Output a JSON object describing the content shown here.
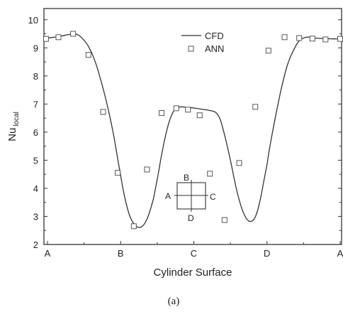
{
  "chart_data": {
    "type": "line",
    "xlabel": "Cylinder Surface",
    "ylabel": "Nu",
    "ylabel_subscript": "local",
    "caption": "(a)",
    "x_ticks": [
      "A",
      "B",
      "C",
      "D",
      "A"
    ],
    "x_positions": [
      0,
      1,
      2,
      3,
      4
    ],
    "xlim": [
      0,
      4
    ],
    "y_ticks": [
      "2",
      "3",
      "4",
      "5",
      "6",
      "7",
      "8",
      "9",
      "10"
    ],
    "ylim": [
      2,
      10.4
    ],
    "legend": {
      "position": "top-center"
    },
    "series": [
      {
        "name": "CFD",
        "style": "line",
        "color": "#333333",
        "x": [
          -0.05,
          0,
          0.15,
          0.3,
          0.38,
          0.46,
          0.56,
          0.66,
          0.76,
          0.84,
          0.9,
          0.95,
          1.0,
          1.05,
          1.12,
          1.2,
          1.28,
          1.36,
          1.44,
          1.48,
          1.52,
          1.56,
          1.62,
          1.68,
          1.74,
          1.82,
          1.9,
          2.0,
          2.1,
          2.2,
          2.3,
          2.36,
          2.42,
          2.5,
          2.58,
          2.66,
          2.72,
          2.78,
          2.84,
          2.9,
          2.96,
          3.0,
          3.04,
          3.12,
          3.2,
          3.28,
          3.36,
          3.44,
          3.54,
          3.62,
          3.7,
          3.8,
          3.9,
          4.0
        ],
        "y": [
          9.33,
          9.35,
          9.4,
          9.48,
          9.5,
          9.38,
          9.05,
          8.45,
          7.55,
          6.7,
          5.95,
          5.2,
          4.45,
          3.75,
          3.05,
          2.68,
          2.62,
          2.9,
          3.55,
          4.05,
          4.6,
          5.2,
          5.95,
          6.5,
          6.8,
          6.9,
          6.88,
          6.86,
          6.82,
          6.78,
          6.7,
          6.45,
          5.9,
          5.0,
          4.0,
          3.25,
          2.92,
          2.82,
          2.98,
          3.5,
          4.3,
          4.85,
          5.5,
          6.6,
          7.6,
          8.4,
          8.9,
          9.25,
          9.38,
          9.36,
          9.34,
          9.33,
          9.32,
          9.32
        ]
      },
      {
        "name": "ANN",
        "style": "marker",
        "marker": "open-square",
        "color": "#555555",
        "x": [
          -0.02,
          0.15,
          0.35,
          0.56,
          0.76,
          0.96,
          1.18,
          1.36,
          1.56,
          1.76,
          1.92,
          2.08,
          2.22,
          2.42,
          2.62,
          2.84,
          3.02,
          3.24,
          3.44,
          3.62,
          3.8,
          4.0
        ],
        "y": [
          9.32,
          9.38,
          9.5,
          8.75,
          6.72,
          4.55,
          2.65,
          4.67,
          6.68,
          6.85,
          6.8,
          6.6,
          4.52,
          2.87,
          4.9,
          6.9,
          8.9,
          9.38,
          9.35,
          9.33,
          9.3,
          9.32
        ]
      }
    ],
    "inset": {
      "labels": {
        "top": "B",
        "left": "A",
        "right": "C",
        "bottom": "D"
      }
    }
  }
}
